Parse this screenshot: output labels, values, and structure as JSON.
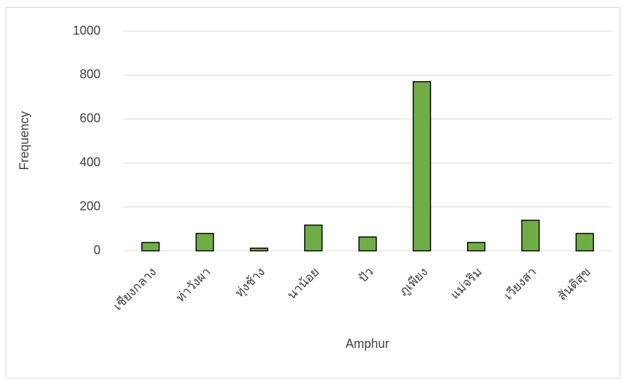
{
  "chart_data": {
    "type": "bar",
    "categories": [
      "เชียงกลาง",
      "ท่าวังผา",
      "ทุ่งช้าง",
      "นาน้อย",
      "ปัว",
      "ภูเพียง",
      "แม่จริม",
      "เวียงสา",
      "สันติสุข"
    ],
    "values": [
      38,
      79,
      12,
      117,
      63,
      770,
      38,
      139,
      79
    ],
    "color": "#70ad47",
    "x_label": "Amphur",
    "y_label": "Frequency",
    "ylim": [
      0,
      1000
    ],
    "yticks": [
      0,
      200,
      400,
      600,
      800,
      1000
    ],
    "grid": true
  }
}
